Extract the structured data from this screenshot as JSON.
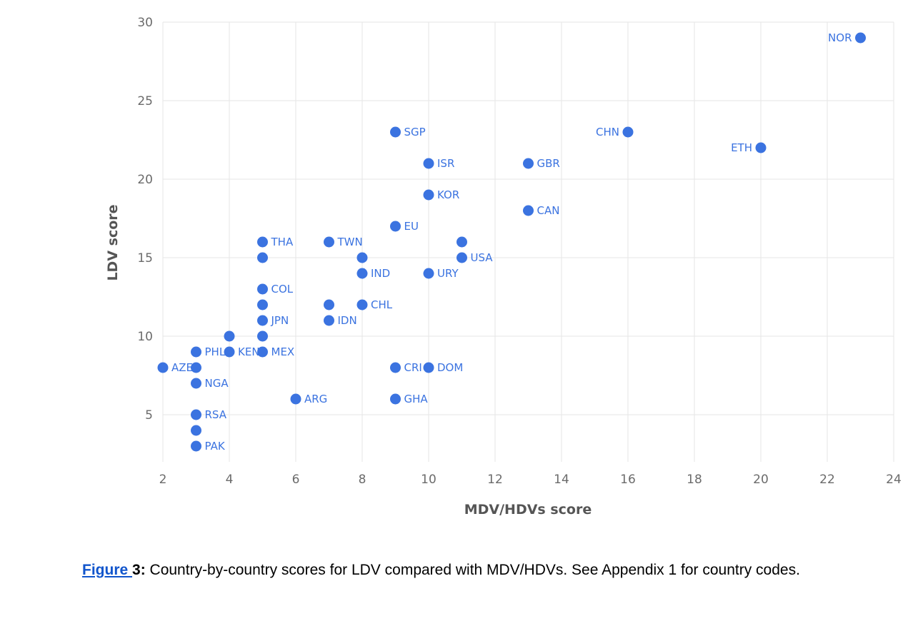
{
  "chart_data": {
    "type": "scatter",
    "xlabel": "MDV/HDVs score",
    "ylabel": "LDV score",
    "xlim": [
      2,
      24
    ],
    "ylim": [
      2,
      30
    ],
    "x_ticks": [
      2,
      4,
      6,
      8,
      10,
      12,
      14,
      16,
      18,
      20,
      22,
      24
    ],
    "y_ticks": [
      5,
      10,
      15,
      20,
      25,
      30
    ],
    "grid": true,
    "marker_color": "#3b73e0",
    "points": [
      {
        "label": "NOR",
        "x": 23,
        "y": 29,
        "label_side": "left"
      },
      {
        "label": "SGP",
        "x": 9,
        "y": 23,
        "label_side": "right"
      },
      {
        "label": "CHN",
        "x": 16,
        "y": 23,
        "label_side": "left"
      },
      {
        "label": "ETH",
        "x": 20,
        "y": 22,
        "label_side": "left"
      },
      {
        "label": "ISR",
        "x": 10,
        "y": 21,
        "label_side": "right"
      },
      {
        "label": "GBR",
        "x": 13,
        "y": 21,
        "label_side": "right"
      },
      {
        "label": "KOR",
        "x": 10,
        "y": 19,
        "label_side": "right"
      },
      {
        "label": "CAN",
        "x": 13,
        "y": 18,
        "label_side": "right"
      },
      {
        "label": "EU",
        "x": 9,
        "y": 17,
        "label_side": "right"
      },
      {
        "label": "THA",
        "x": 5,
        "y": 16,
        "label_side": "right"
      },
      {
        "label": "TWN",
        "x": 7,
        "y": 16,
        "label_side": "right"
      },
      {
        "label": "",
        "x": 11,
        "y": 16,
        "label_side": "right"
      },
      {
        "label": "",
        "x": 5,
        "y": 15,
        "label_side": "right"
      },
      {
        "label": "",
        "x": 8,
        "y": 15,
        "label_side": "right"
      },
      {
        "label": "USA",
        "x": 11,
        "y": 15,
        "label_side": "right"
      },
      {
        "label": "IND",
        "x": 8,
        "y": 14,
        "label_side": "right"
      },
      {
        "label": "URY",
        "x": 10,
        "y": 14,
        "label_side": "right"
      },
      {
        "label": "COL",
        "x": 5,
        "y": 13,
        "label_side": "right"
      },
      {
        "label": "",
        "x": 5,
        "y": 12,
        "label_side": "right"
      },
      {
        "label": "",
        "x": 7,
        "y": 12,
        "label_side": "right"
      },
      {
        "label": "CHL",
        "x": 8,
        "y": 12,
        "label_side": "right"
      },
      {
        "label": "JPN",
        "x": 5,
        "y": 11,
        "label_side": "right"
      },
      {
        "label": "IDN",
        "x": 7,
        "y": 11,
        "label_side": "right"
      },
      {
        "label": "",
        "x": 4,
        "y": 10,
        "label_side": "right"
      },
      {
        "label": "",
        "x": 5,
        "y": 10,
        "label_side": "right"
      },
      {
        "label": "PHL",
        "x": 3,
        "y": 9,
        "label_side": "right"
      },
      {
        "label": "KEN",
        "x": 4,
        "y": 9,
        "label_side": "right"
      },
      {
        "label": "MEX",
        "x": 5,
        "y": 9,
        "label_side": "right"
      },
      {
        "label": "AZE",
        "x": 2,
        "y": 8,
        "label_side": "right"
      },
      {
        "label": "",
        "x": 3,
        "y": 8,
        "label_side": "right"
      },
      {
        "label": "CRI",
        "x": 9,
        "y": 8,
        "label_side": "right"
      },
      {
        "label": "DOM",
        "x": 10,
        "y": 8,
        "label_side": "right"
      },
      {
        "label": "NGA",
        "x": 3,
        "y": 7,
        "label_side": "right"
      },
      {
        "label": "ARG",
        "x": 6,
        "y": 6,
        "label_side": "right"
      },
      {
        "label": "GHA",
        "x": 9,
        "y": 6,
        "label_side": "right"
      },
      {
        "label": "RSA",
        "x": 3,
        "y": 5,
        "label_side": "right"
      },
      {
        "label": "",
        "x": 3,
        "y": 4,
        "label_side": "right"
      },
      {
        "label": "PAK",
        "x": 3,
        "y": 3,
        "label_side": "right"
      }
    ]
  },
  "caption": {
    "link_text": "Figure ",
    "number": "3:",
    "text": " Country-by-country scores for LDV compared with MDV/HDVs. See Appendix 1 for country codes."
  }
}
